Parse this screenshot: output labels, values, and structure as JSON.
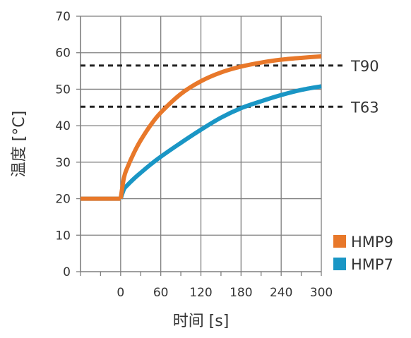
{
  "chart_data": {
    "type": "line",
    "title": "",
    "xlabel": "时间 [s]",
    "ylabel": "温度 [°C]",
    "xlim": [
      -60,
      300
    ],
    "ylim": [
      0,
      70
    ],
    "x_ticks": [
      0,
      60,
      120,
      180,
      240,
      300
    ],
    "y_ticks": [
      0,
      10,
      20,
      30,
      40,
      50,
      60,
      70
    ],
    "grid": true,
    "legend_position": "bottom-right",
    "series": [
      {
        "name": "HMP9",
        "color": "#E8782A",
        "x": [
          -60,
          -30,
          0,
          5,
          10,
          20,
          30,
          45,
          60,
          90,
          120,
          150,
          180,
          210,
          240,
          270,
          300
        ],
        "y": [
          20,
          20,
          20,
          25.8,
          28.5,
          32.6,
          36.0,
          40.2,
          43.6,
          48.7,
          52.2,
          54.6,
          56.2,
          57.3,
          58.1,
          58.6,
          59.0
        ]
      },
      {
        "name": "HMP7",
        "color": "#1A96C5",
        "x": [
          -60,
          -30,
          0,
          5,
          10,
          20,
          30,
          45,
          60,
          90,
          120,
          150,
          180,
          210,
          240,
          270,
          300
        ],
        "y": [
          20,
          20,
          20,
          22.6,
          23.7,
          25.5,
          27.1,
          29.4,
          31.5,
          35.3,
          38.9,
          42.2,
          44.8,
          46.7,
          48.4,
          49.8,
          50.8
        ]
      }
    ],
    "annotations": [
      {
        "label": "T90",
        "y": 56.5
      },
      {
        "label": "T63",
        "y": 45.2
      }
    ]
  }
}
